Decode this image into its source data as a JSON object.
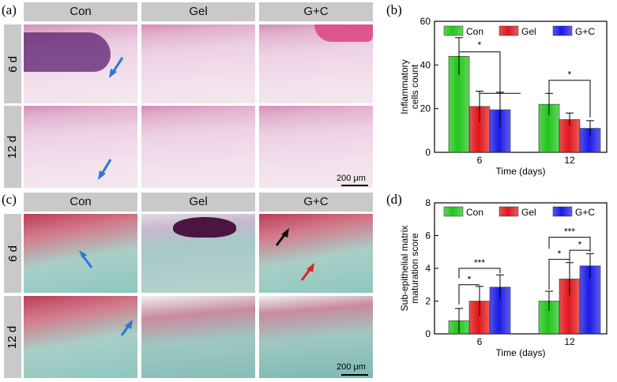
{
  "panels": {
    "a": {
      "label": "(a)",
      "columns": [
        "Con",
        "Gel",
        "G+C"
      ],
      "rows": [
        "6 d",
        "12 d"
      ],
      "scale_bar": "200 μm"
    },
    "c": {
      "label": "(c)",
      "columns": [
        "Con",
        "Gel",
        "G+C"
      ],
      "rows": [
        "6 d",
        "12 d"
      ],
      "scale_bar": "200 μm"
    }
  },
  "colors": {
    "Con": "#22c41c",
    "Gel": "#e0161a",
    "G+C": "#1a1ae6"
  },
  "chart_data": [
    {
      "panel": "(b)",
      "type": "bar",
      "categories": [
        "6",
        "12"
      ],
      "series": [
        {
          "name": "Con",
          "values": [
            44,
            22
          ],
          "errors": [
            8.5,
            5
          ]
        },
        {
          "name": "Gel",
          "values": [
            21,
            15
          ],
          "errors": [
            7,
            3
          ]
        },
        {
          "name": "G+C",
          "values": [
            19.5,
            11
          ],
          "errors": [
            8,
            3.5
          ]
        }
      ],
      "xlabel": "Time (days)",
      "ylabel": [
        "Inflammatory",
        "cells  count"
      ],
      "ylim": [
        0,
        60
      ],
      "yticks": [
        "0",
        "20",
        "40",
        "60"
      ],
      "legend_position": "top",
      "significance": [
        "*",
        "*"
      ]
    },
    {
      "panel": "(d)",
      "type": "bar",
      "categories": [
        "6",
        "12"
      ],
      "series": [
        {
          "name": "Con",
          "values": [
            0.8,
            2.0
          ],
          "errors": [
            0.75,
            0.6
          ]
        },
        {
          "name": "Gel",
          "values": [
            2.0,
            3.35
          ],
          "errors": [
            0.9,
            1.0
          ]
        },
        {
          "name": "G+C",
          "values": [
            2.85,
            4.15
          ],
          "errors": [
            0.75,
            0.75
          ]
        }
      ],
      "xlabel": "Time (days)",
      "ylabel": [
        "Sub-epithelial matrix",
        "maturation score"
      ],
      "ylim": [
        0,
        8
      ],
      "yticks": [
        "0",
        "2",
        "4",
        "6",
        "8"
      ],
      "legend_position": "top",
      "significance": [
        "*",
        "***",
        "*",
        "***",
        "*"
      ]
    }
  ]
}
